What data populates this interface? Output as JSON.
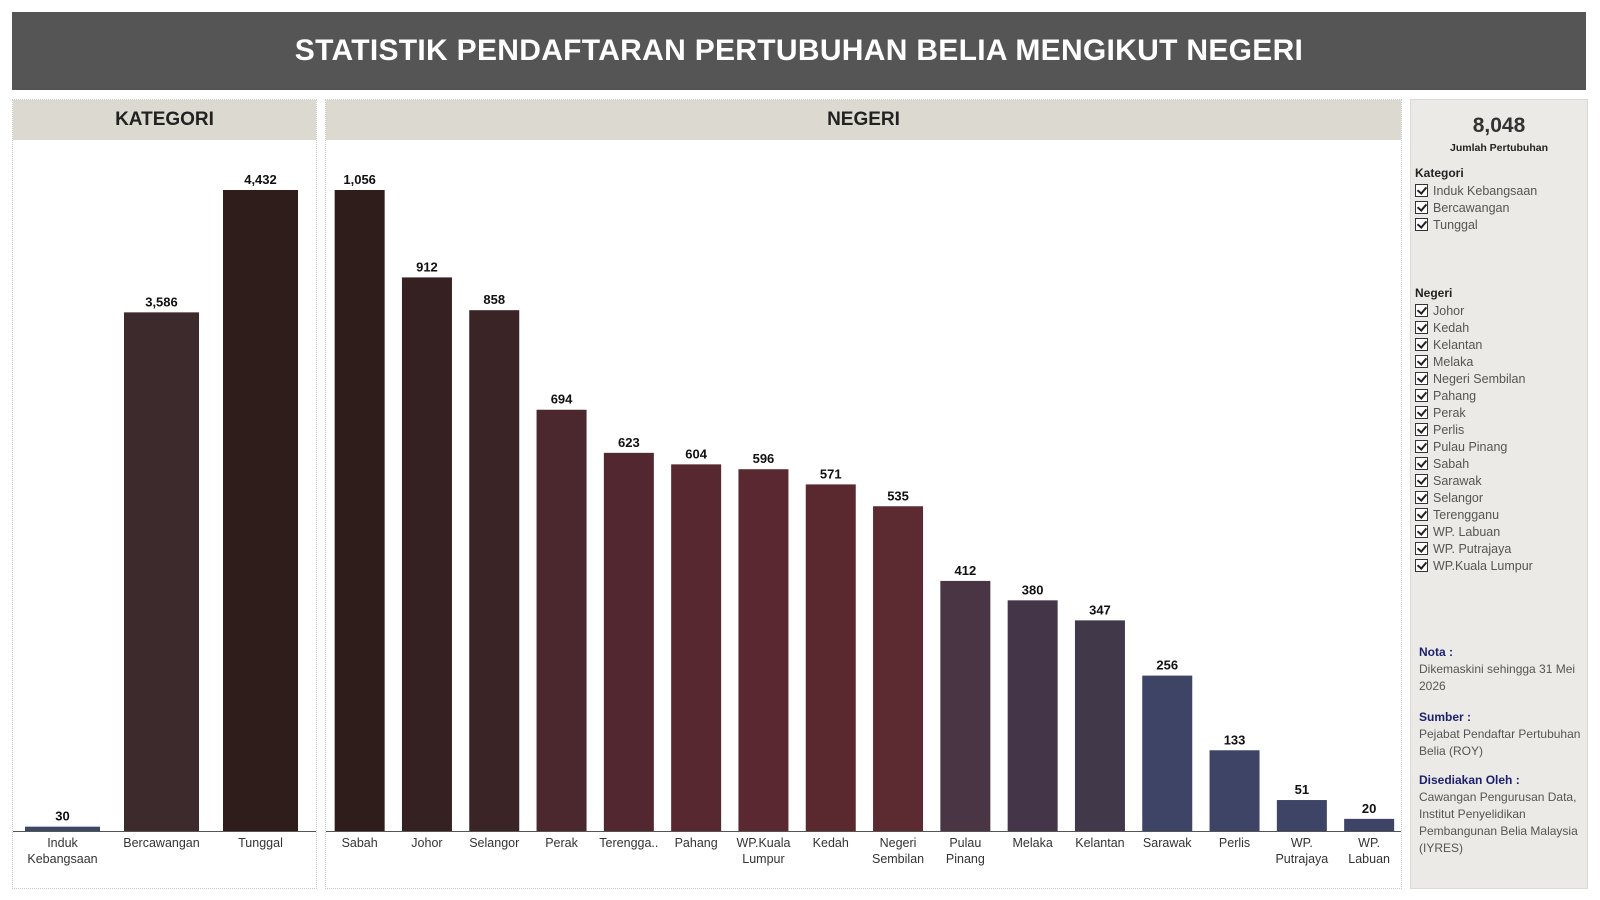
{
  "page_title": "STATISTIK PENDAFTARAN PERTUBUHAN BELIA MENGIKUT NEGERI",
  "chart_data": [
    {
      "type": "bar",
      "title": "KATEGORI",
      "categories": [
        "Induk Kebangsaan",
        "Bercawangan",
        "Tunggal"
      ],
      "tick_labels": [
        [
          "Induk",
          "Kebangsaan"
        ],
        [
          "Bercawangan"
        ],
        [
          "Tunggal"
        ]
      ],
      "values": [
        30,
        3586,
        4432
      ],
      "value_labels": [
        "30",
        "3,586",
        "4,432"
      ],
      "colors": [
        "#3d4766",
        "#3c2a2c",
        "#2f1d1c"
      ],
      "ylim": [
        0,
        4432
      ]
    },
    {
      "type": "bar",
      "title": "NEGERI",
      "categories": [
        "Sabah",
        "Johor",
        "Selangor",
        "Perak",
        "Terengganu",
        "Pahang",
        "WP.Kuala Lumpur",
        "Kedah",
        "Negeri Sembilan",
        "Pulau Pinang",
        "Melaka",
        "Kelantan",
        "Sarawak",
        "Perlis",
        "WP. Putrajaya",
        "WP. Labuan"
      ],
      "tick_labels": [
        [
          "Sabah"
        ],
        [
          "Johor"
        ],
        [
          "Selangor"
        ],
        [
          "Perak"
        ],
        [
          "Terengga.."
        ],
        [
          "Pahang"
        ],
        [
          "WP.Kuala",
          "Lumpur"
        ],
        [
          "Kedah"
        ],
        [
          "Negeri",
          "Sembilan"
        ],
        [
          "Pulau",
          "Pinang"
        ],
        [
          "Melaka"
        ],
        [
          "Kelantan"
        ],
        [
          "Sarawak"
        ],
        [
          "Perlis"
        ],
        [
          "WP.",
          "Putrajaya"
        ],
        [
          "WP.",
          "Labuan"
        ]
      ],
      "values": [
        1056,
        912,
        858,
        694,
        623,
        604,
        596,
        571,
        535,
        412,
        380,
        347,
        256,
        133,
        51,
        20
      ],
      "value_labels": [
        "1,056",
        "912",
        "858",
        "694",
        "623",
        "604",
        "596",
        "571",
        "535",
        "412",
        "380",
        "347",
        "256",
        "133",
        "51",
        "20"
      ],
      "colors": [
        "#2f1d1c",
        "#352122",
        "#3a2426",
        "#4b272e",
        "#53272f",
        "#572830",
        "#592830",
        "#5a2930",
        "#5c2a31",
        "#4a3545",
        "#453548",
        "#413849",
        "#3d4466",
        "#3d4466",
        "#3d4466",
        "#3d4466"
      ],
      "ylim": [
        0,
        1056
      ]
    }
  ],
  "sidebar": {
    "total_value": "8,048",
    "total_label": "Jumlah Pertubuhan",
    "kategori_filter": {
      "title": "Kategori",
      "items": [
        "Induk Kebangsaan",
        "Bercawangan",
        "Tunggal"
      ]
    },
    "negeri_filter": {
      "title": "Negeri",
      "items": [
        "Johor",
        "Kedah",
        "Kelantan",
        "Melaka",
        "Negeri Sembilan",
        "Pahang",
        "Perak",
        "Perlis",
        "Pulau Pinang",
        "Sabah",
        "Sarawak",
        "Selangor",
        "Terengganu",
        "WP. Labuan",
        "WP. Putrajaya",
        "WP.Kuala Lumpur"
      ]
    },
    "nota_heading": "Nota :",
    "nota_text": "Dikemaskini sehingga 31 Mei 2026",
    "sumber_heading": "Sumber :",
    "sumber_text": "Pejabat Pendaftar Pertubuhan Belia (ROY)",
    "disediakan_heading": "Disediakan Oleh :",
    "disediakan_text": "Cawangan Pengurusan Data, Institut Penyelidikan Pembangunan Belia Malaysia (IYRES)"
  }
}
